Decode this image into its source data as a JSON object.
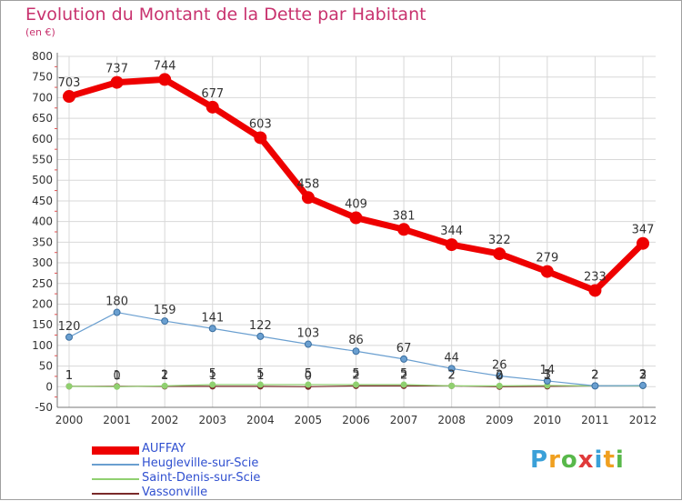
{
  "title": "Evolution du Montant de la Dette par Habitant",
  "subtitle": "(en €)",
  "logo": {
    "letters": [
      "P",
      "r",
      "o",
      "x",
      "i",
      "t",
      "i"
    ],
    "colors": [
      "#3aa0d8",
      "#f0a020",
      "#58b84a",
      "#e03a3a",
      "#3aa0d8",
      "#f0a020",
      "#58b84a"
    ]
  },
  "chart_data": {
    "type": "line",
    "x": [
      "2000",
      "2001",
      "2002",
      "2003",
      "2004",
      "2005",
      "2006",
      "2007",
      "2008",
      "2009",
      "2010",
      "2011",
      "2012"
    ],
    "ylim": [
      -50,
      800
    ],
    "yticks": [
      -50,
      0,
      50,
      100,
      150,
      200,
      250,
      300,
      350,
      400,
      450,
      500,
      550,
      600,
      650,
      700,
      750,
      800
    ],
    "grid": true,
    "series": [
      {
        "name": "AUFFAY",
        "color": "#ee0000",
        "values": [
          703,
          737,
          744,
          677,
          603,
          458,
          409,
          381,
          344,
          322,
          279,
          233,
          347
        ],
        "labels": [
          "703",
          "737",
          "744",
          "677",
          "603",
          "458",
          "409",
          "381",
          "344",
          "322",
          "279",
          "233",
          "347"
        ]
      },
      {
        "name": "Heugleville-sur-Scie",
        "color": "#6a9fd0",
        "values": [
          120,
          180,
          159,
          141,
          122,
          103,
          86,
          67,
          44,
          26,
          14,
          2,
          3
        ],
        "labels": [
          "120",
          "180",
          "159",
          "141",
          "122",
          "103",
          "86",
          "67",
          "44",
          "26",
          "14",
          "2",
          "3"
        ]
      },
      {
        "name": "Saint-Denis-sur-Scie",
        "color": "#90d070",
        "values": [
          1,
          0,
          2,
          5,
          5,
          5,
          5,
          5,
          2,
          2,
          3,
          2,
          2
        ],
        "labels": [
          "1",
          "0",
          "2",
          "5",
          "5",
          "5",
          "5",
          "5",
          "2",
          "2",
          "3",
          "2",
          "2"
        ]
      },
      {
        "name": "Vassonville",
        "color": "#7a2a2a",
        "values": [
          1,
          1,
          1,
          1,
          1,
          0,
          2,
          2,
          2,
          0,
          1,
          2,
          2
        ],
        "labels": [
          "1",
          "1",
          "1",
          "1",
          "1",
          "0",
          "2",
          "2",
          "2",
          "0",
          "1",
          "2",
          "2"
        ]
      }
    ]
  }
}
